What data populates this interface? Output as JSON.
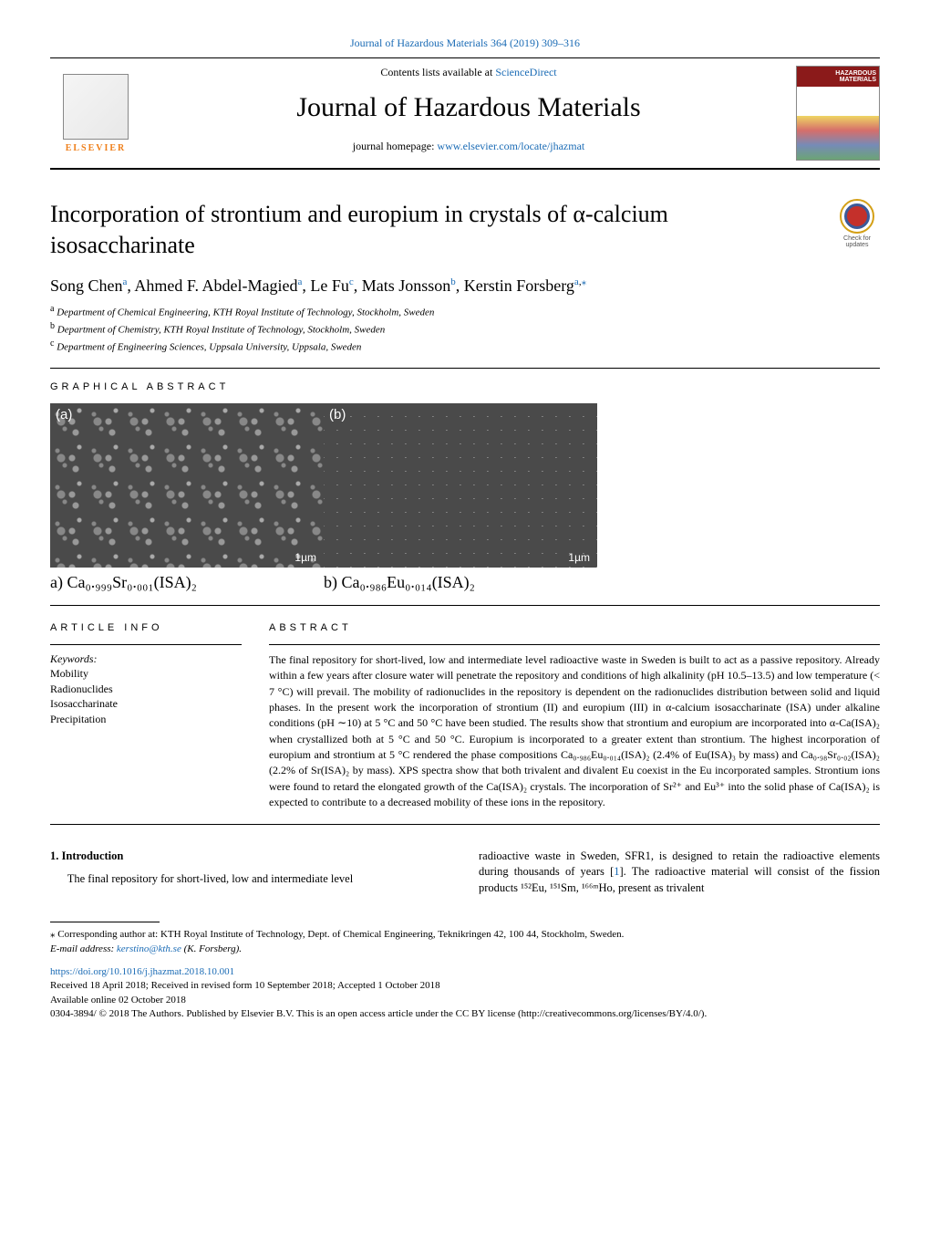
{
  "citation": "Journal of Hazardous Materials 364 (2019) 309–316",
  "header": {
    "contents_line": "Contents lists available at ",
    "sciencedirect": "ScienceDirect",
    "journal_name": "Journal of Hazardous Materials",
    "homepage_label": "journal homepage: ",
    "homepage_url": "www.elsevier.com/locate/jhazmat",
    "publisher": "ELSEVIER",
    "cover_title": "HAZARDOUS MATERIALS"
  },
  "check_updates": "Check for updates",
  "title": "Incorporation of strontium and europium in crystals of α-calcium isosaccharinate",
  "authors_html": "Song Chen<a>a</a>, Ahmed F. Abdel-Magied<a>a</a>, Le Fu<c>c</c>, Mats Jonsson<b>b</b>, Kerstin Forsberg<a>a,</a><a>⁎</a>",
  "authors": [
    {
      "name": "Song Chen",
      "aff": "a"
    },
    {
      "name": "Ahmed F. Abdel-Magied",
      "aff": "a"
    },
    {
      "name": "Le Fu",
      "aff": "c"
    },
    {
      "name": "Mats Jonsson",
      "aff": "b"
    },
    {
      "name": "Kerstin Forsberg",
      "aff": "a,⁎"
    }
  ],
  "affiliations": {
    "a": "Department of Chemical Engineering, KTH Royal Institute of Technology, Stockholm, Sweden",
    "b": "Department of Chemistry, KTH Royal Institute of Technology, Stockholm, Sweden",
    "c": "Department of Engineering Sciences, Uppsala University, Uppsala, Sweden"
  },
  "section_labels": {
    "graphical_abstract": "GRAPHICAL ABSTRACT",
    "article_info": "ARTICLE INFO",
    "abstract": "ABSTRACT"
  },
  "graphical_abstract": {
    "img_a_label": "(a)",
    "img_b_label": "(b)",
    "scale": "1µm",
    "caption_a": "a) Ca₀.₉₉₉Sr₀.₀₀₁(ISA)₂",
    "caption_b": "b) Ca₀.₉₈₆Eu₀.₀₁₄(ISA)₂"
  },
  "keywords_label": "Keywords:",
  "keywords": [
    "Mobility",
    "Radionuclides",
    "Isosaccharinate",
    "Precipitation"
  ],
  "abstract": "The final repository for short-lived, low and intermediate level radioactive waste in Sweden is built to act as a passive repository. Already within a few years after closure water will penetrate the repository and conditions of high alkalinity (pH 10.5–13.5) and low temperature (< 7 °C) will prevail. The mobility of radionuclides in the repository is dependent on the radionuclides distribution between solid and liquid phases. In the present work the incorporation of strontium (II) and europium (III) in α-calcium isosaccharinate (ISA) under alkaline conditions (pH ∼10) at 5 °C and 50 °C have been studied. The results show that strontium and europium are incorporated into α-Ca(ISA)₂ when crystallized both at 5 °C and 50 °C. Europium is incorporated to a greater extent than strontium. The highest incorporation of europium and strontium at 5 °C rendered the phase compositions Ca₀.₉₈₆Eu₀.₀₁₄(ISA)₂ (2.4% of Eu(ISA)₃ by mass) and Ca₀.₉₈Sr₀.₀₂(ISA)₂ (2.2% of Sr(ISA)₂ by mass). XPS spectra show that both trivalent and divalent Eu coexist in the Eu incorporated samples. Strontium ions were found to retard the elongated growth of the Ca(ISA)₂ crystals. The incorporation of Sr²⁺ and Eu³⁺ into the solid phase of Ca(ISA)₂ is expected to contribute to a decreased mobility of these ions in the repository.",
  "introduction": {
    "heading": "1. Introduction",
    "col1": "The final repository for short-lived, low and intermediate level",
    "col2_part1": "radioactive waste in Sweden, SFR1, is designed to retain the radioactive elements during thousands of years [",
    "col2_ref": "1",
    "col2_part2": "]. The radioactive material will consist of the fission products ¹⁵²Eu, ¹⁵¹Sm, ¹⁶⁶ᵐHo, present as trivalent"
  },
  "footer": {
    "corresponding": "⁎ Corresponding author at: KTH Royal Institute of Technology, Dept. of Chemical Engineering, Teknikringen 42, 100 44, Stockholm, Sweden.",
    "email_label": "E-mail address: ",
    "email": "kerstino@kth.se",
    "email_name": " (K. Forsberg).",
    "doi": "https://doi.org/10.1016/j.jhazmat.2018.10.001",
    "received": "Received 18 April 2018; Received in revised form 10 September 2018; Accepted 1 October 2018",
    "available": "Available online 02 October 2018",
    "copyright": "0304-3894/ © 2018 The Authors. Published by Elsevier B.V. This is an open access article under the CC BY license (http://creativecommons.org/licenses/BY/4.0/)."
  }
}
